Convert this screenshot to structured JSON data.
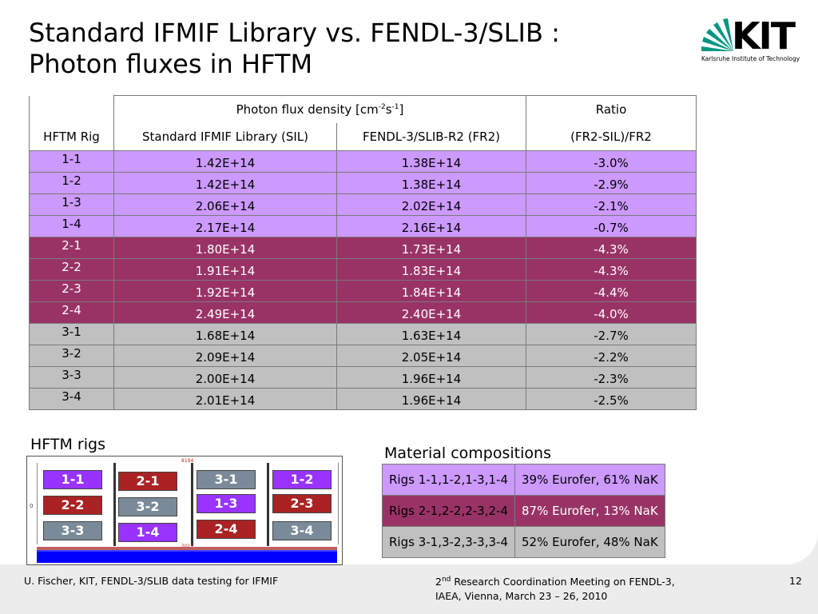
{
  "title_line1": "Standard IFMIF Library vs. FENDL-3/SLIB :",
  "title_line2": "Photon fluxes in HFTM",
  "logo": {
    "name": "KIT",
    "tagline": "Karlsruhe Institute of Technology",
    "color": "#009682"
  },
  "table": {
    "header_group": "Photon flux density [cm",
    "header_group_exp1": "-2",
    "header_group_mid": "s",
    "header_group_exp2": "-1",
    "header_group_end": "]",
    "ratio_header": "Ratio",
    "col_rig": "HFTM Rig",
    "col_sil": "Standard IFMIF Library (SIL)",
    "col_fr2": "FENDL-3/SLIB-R2 (FR2)",
    "col_ratio": "(FR2-SIL)/FR2",
    "rows": [
      {
        "rig": "1-1",
        "sil": "1.42E+14",
        "fr2": "1.38E+14",
        "ratio": "-3.0%"
      },
      {
        "rig": "1-2",
        "sil": "1.42E+14",
        "fr2": "1.38E+14",
        "ratio": "-2.9%"
      },
      {
        "rig": "1-3",
        "sil": "2.06E+14",
        "fr2": "2.02E+14",
        "ratio": "-2.1%"
      },
      {
        "rig": "1-4",
        "sil": "2.17E+14",
        "fr2": "2.16E+14",
        "ratio": "-0.7%"
      },
      {
        "rig": "2-1",
        "sil": "1.80E+14",
        "fr2": "1.73E+14",
        "ratio": "-4.3%"
      },
      {
        "rig": "2-2",
        "sil": "1.91E+14",
        "fr2": "1.83E+14",
        "ratio": "-4.3%"
      },
      {
        "rig": "2-3",
        "sil": "1.92E+14",
        "fr2": "1.84E+14",
        "ratio": "-4.4%"
      },
      {
        "rig": "2-4",
        "sil": "2.49E+14",
        "fr2": "2.40E+14",
        "ratio": "-4.0%"
      },
      {
        "rig": "3-1",
        "sil": "1.68E+14",
        "fr2": "1.63E+14",
        "ratio": "-2.7%"
      },
      {
        "rig": "3-2",
        "sil": "2.09E+14",
        "fr2": "2.05E+14",
        "ratio": "-2.2%"
      },
      {
        "rig": "3-3",
        "sil": "2.00E+14",
        "fr2": "1.96E+14",
        "ratio": "-2.3%"
      },
      {
        "rig": "3-4",
        "sil": "2.01E+14",
        "fr2": "1.96E+14",
        "ratio": "-2.5%"
      }
    ]
  },
  "diagram": {
    "heading": "HFTM rigs",
    "cells": [
      "1-1",
      "2-1",
      "3-1",
      "1-2",
      "2-2",
      "3-2",
      "1-3",
      "2-3",
      "3-3",
      "1-4",
      "2-4",
      "3-4"
    ],
    "y_tick": "0",
    "dim_top": "8194",
    "dim_bottom": "2011"
  },
  "materials": {
    "heading": "Material compositions",
    "rows": [
      {
        "rigs": "Rigs 1-1,1-2,1-3,1-4",
        "comp": "39% Eurofer, 61% NaK"
      },
      {
        "rigs": "Rigs 2-1,2-2,2-3,2-4",
        "comp": "87% Eurofer, 13% NaK"
      },
      {
        "rigs": "Rigs 3-1,3-2,3-3,3-4",
        "comp": "52% Eurofer, 48% NaK"
      }
    ]
  },
  "colors": {
    "group1": "#cc99ff",
    "group2": "#993366",
    "group3": "#c0c0c0"
  },
  "footer": {
    "left": "U. Fischer, KIT, FENDL-3/SLIB data testing for IFMIF",
    "mid_num": "2",
    "mid_sup": "nd",
    "mid_line1_rest": " Research Coordination Meeting on FENDL-3,",
    "mid_line2": "IAEA, Vienna, March 23 – 26, 2010",
    "page": "12"
  }
}
